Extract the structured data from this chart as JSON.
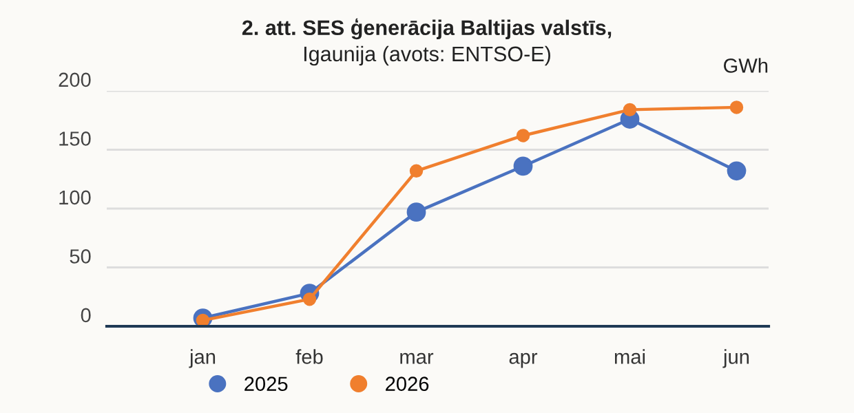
{
  "chart_data": {
    "type": "line",
    "title": "2. att. SES ģenerācija Baltijas valstīs,",
    "subtitle": "Igaunija (avots: ENTSO-E)",
    "ylabel": "GWh",
    "categories": [
      "jan",
      "feb",
      "mar",
      "apr",
      "mai",
      "jun"
    ],
    "series": [
      {
        "name": "2025",
        "color": "#4a72c0",
        "values": [
          7,
          28,
          97,
          136,
          176,
          132
        ]
      },
      {
        "name": "2026",
        "color": "#f07f2e",
        "values": [
          5,
          23,
          132,
          162,
          184,
          186
        ]
      }
    ],
    "ylim": [
      0,
      200
    ],
    "yticks": [
      0,
      50,
      100,
      150,
      200
    ],
    "grid": "y",
    "legend": "bottom left",
    "marker": "circle",
    "line_style": "solid"
  }
}
